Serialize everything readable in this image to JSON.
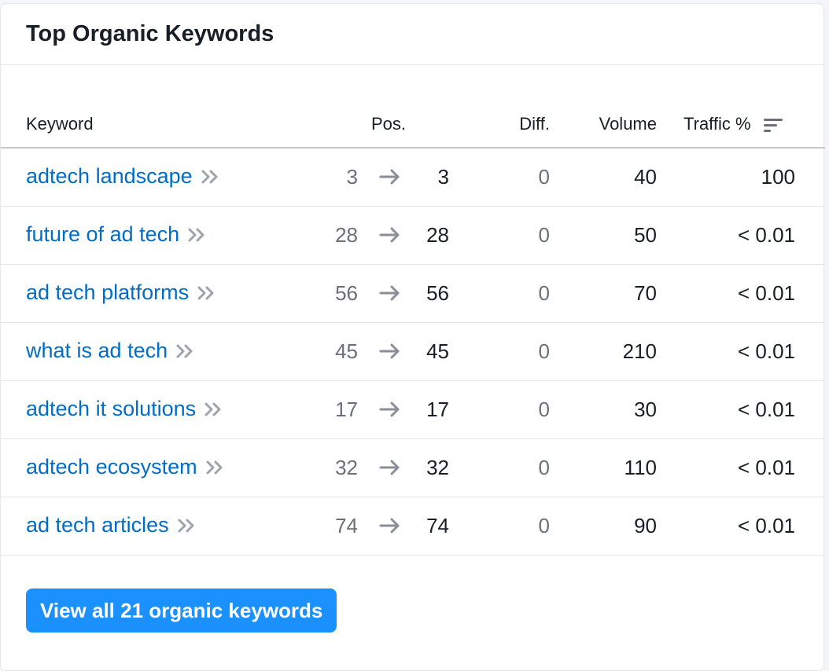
{
  "widget": {
    "title": "Top Organic Keywords",
    "button_label": "View all 21 organic keywords"
  },
  "columns": {
    "keyword": "Keyword",
    "pos": "Pos.",
    "diff": "Diff.",
    "volume": "Volume",
    "traffic": "Traffic %"
  },
  "icons": {
    "sort": "sort-icon",
    "open_keyword": "double-chevron-right-icon",
    "position_change": "arrow-right-icon"
  },
  "colors": {
    "link": "#006dca",
    "button": "#1a91ff",
    "muted": "#6c6e79"
  },
  "rows": [
    {
      "keyword": "adtech landscape",
      "pos_prev": "3",
      "pos_curr": "3",
      "diff": "0",
      "volume": "40",
      "traffic": "100"
    },
    {
      "keyword": "future of ad tech",
      "pos_prev": "28",
      "pos_curr": "28",
      "diff": "0",
      "volume": "50",
      "traffic": "< 0.01"
    },
    {
      "keyword": "ad tech platforms",
      "pos_prev": "56",
      "pos_curr": "56",
      "diff": "0",
      "volume": "70",
      "traffic": "< 0.01"
    },
    {
      "keyword": "what is ad tech",
      "pos_prev": "45",
      "pos_curr": "45",
      "diff": "0",
      "volume": "210",
      "traffic": "< 0.01"
    },
    {
      "keyword": "adtech it solutions",
      "pos_prev": "17",
      "pos_curr": "17",
      "diff": "0",
      "volume": "30",
      "traffic": "< 0.01"
    },
    {
      "keyword": "adtech ecosystem",
      "pos_prev": "32",
      "pos_curr": "32",
      "diff": "0",
      "volume": "110",
      "traffic": "< 0.01"
    },
    {
      "keyword": "ad tech articles",
      "pos_prev": "74",
      "pos_curr": "74",
      "diff": "0",
      "volume": "90",
      "traffic": "< 0.01"
    }
  ]
}
